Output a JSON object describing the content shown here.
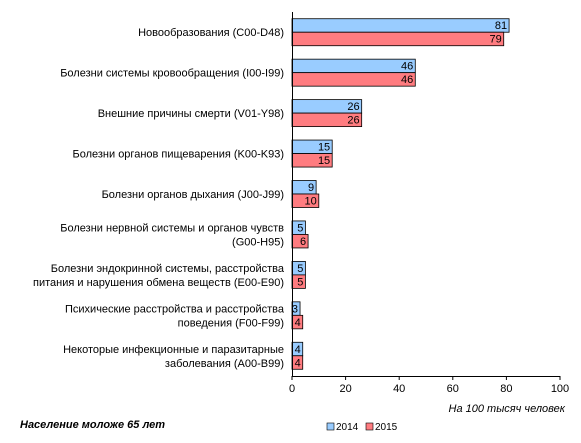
{
  "chart_data": {
    "type": "bar",
    "orientation": "horizontal",
    "categories": [
      [
        "Новообразования (C00-D48)"
      ],
      [
        "Болезни системы кровообращения (I00-I99)"
      ],
      [
        "Внешние причины смерти (V01-Y98)"
      ],
      [
        "Болезни органов пищеварения (K00-K93)"
      ],
      [
        "Болезни органов дыхания (J00-J99)"
      ],
      [
        "Болезни нервной системы и органов чувств",
        "(G00-H95)"
      ],
      [
        "Болезни эндокринной системы, расстройства",
        "питания и нарушения обмена веществ  (E00-E90)"
      ],
      [
        "Психические расстройства и расстройства",
        "поведения (F00-F99)"
      ],
      [
        "Некоторые инфекционные и паразитарные",
        "заболевания (A00-B99)"
      ]
    ],
    "series": [
      {
        "name": "2014",
        "color": "#99ccff",
        "values": [
          81,
          46,
          26,
          15,
          9,
          5,
          5,
          3,
          4
        ]
      },
      {
        "name": "2015",
        "color": "#ff7c80",
        "values": [
          79,
          46,
          26,
          15,
          10,
          6,
          5,
          4,
          4
        ]
      }
    ],
    "xlim": [
      0,
      100
    ],
    "xticks": [
      0,
      20,
      40,
      60,
      80,
      100
    ],
    "xlabel": "На 100 тысяч человек",
    "grid": false,
    "legend": "bottom-right",
    "data_labels": true
  },
  "footnote": "Население моложе 65 лет"
}
